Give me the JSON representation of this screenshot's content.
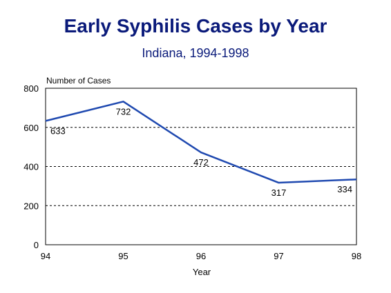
{
  "chart_data": {
    "type": "line",
    "title": "Early Syphilis Cases by Year",
    "subtitle": "Indiana, 1994-1998",
    "xlabel": "Year",
    "ylabel": "Number of Cases",
    "categories": [
      "94",
      "95",
      "96",
      "97",
      "98"
    ],
    "x": [
      94,
      95,
      96,
      97,
      98
    ],
    "xlim": [
      94,
      98
    ],
    "ylim": [
      0,
      800
    ],
    "yticks": [
      0,
      200,
      400,
      600,
      800
    ],
    "series": [
      {
        "values": [
          633,
          732,
          472,
          317,
          334
        ],
        "data_labels": [
          "633",
          "732",
          "472",
          "317",
          "334"
        ]
      }
    ],
    "grid": "horizontal dashed",
    "colors": {
      "line": "#1f49b0",
      "title": "#0a1a7a",
      "text": "#000000"
    }
  }
}
